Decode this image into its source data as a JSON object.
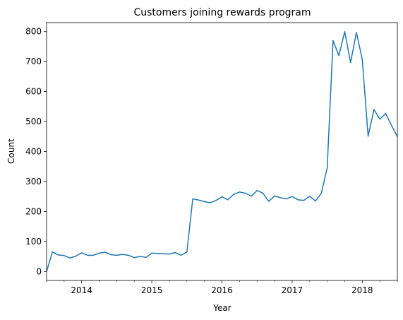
{
  "chart_data": {
    "type": "line",
    "title": "Customers joining rewards program",
    "xlabel": "Year",
    "ylabel": "Count",
    "ylim": [
      -30,
      830
    ],
    "xlim": [
      "2013-07",
      "2018-07"
    ],
    "grid": false,
    "color": "#1f77b4",
    "x_ticks": [
      "2014",
      "2015",
      "2016",
      "2017",
      "2018"
    ],
    "y_ticks": [
      "0",
      "100",
      "200",
      "300",
      "400",
      "500",
      "600",
      "700",
      "800"
    ],
    "series": [
      {
        "x": [
          "2013-07",
          "2013-08",
          "2013-09",
          "2013-10",
          "2013-11",
          "2013-12",
          "2014-01",
          "2014-02",
          "2014-03",
          "2014-04",
          "2014-05",
          "2014-06",
          "2014-07",
          "2014-08",
          "2014-09",
          "2014-10",
          "2014-11",
          "2014-12",
          "2015-01",
          "2015-02",
          "2015-03",
          "2015-04",
          "2015-05",
          "2015-06",
          "2015-07",
          "2015-08",
          "2015-09",
          "2015-10",
          "2015-11",
          "2015-12",
          "2016-01",
          "2016-02",
          "2016-03",
          "2016-04",
          "2016-05",
          "2016-06",
          "2016-07",
          "2016-08",
          "2016-09",
          "2016-10",
          "2016-11",
          "2016-12",
          "2017-01",
          "2017-02",
          "2017-03",
          "2017-04",
          "2017-05",
          "2017-06",
          "2017-07",
          "2017-08",
          "2017-09",
          "2017-10",
          "2017-11",
          "2017-12",
          "2018-01",
          "2018-02",
          "2018-03",
          "2018-04",
          "2018-05",
          "2018-06",
          "2018-07"
        ],
        "values": [
          0,
          65,
          55,
          53,
          45,
          51,
          62,
          54,
          54,
          61,
          64,
          56,
          54,
          57,
          54,
          46,
          50,
          47,
          61,
          60,
          59,
          58,
          63,
          54,
          65,
          242,
          238,
          233,
          229,
          237,
          249,
          239,
          257,
          265,
          261,
          251,
          270,
          261,
          234,
          252,
          246,
          242,
          250,
          239,
          237,
          251,
          235,
          261,
          345,
          770,
          720,
          800,
          697,
          797,
          707,
          451,
          540,
          508,
          527,
          487,
          450
        ]
      }
    ]
  }
}
